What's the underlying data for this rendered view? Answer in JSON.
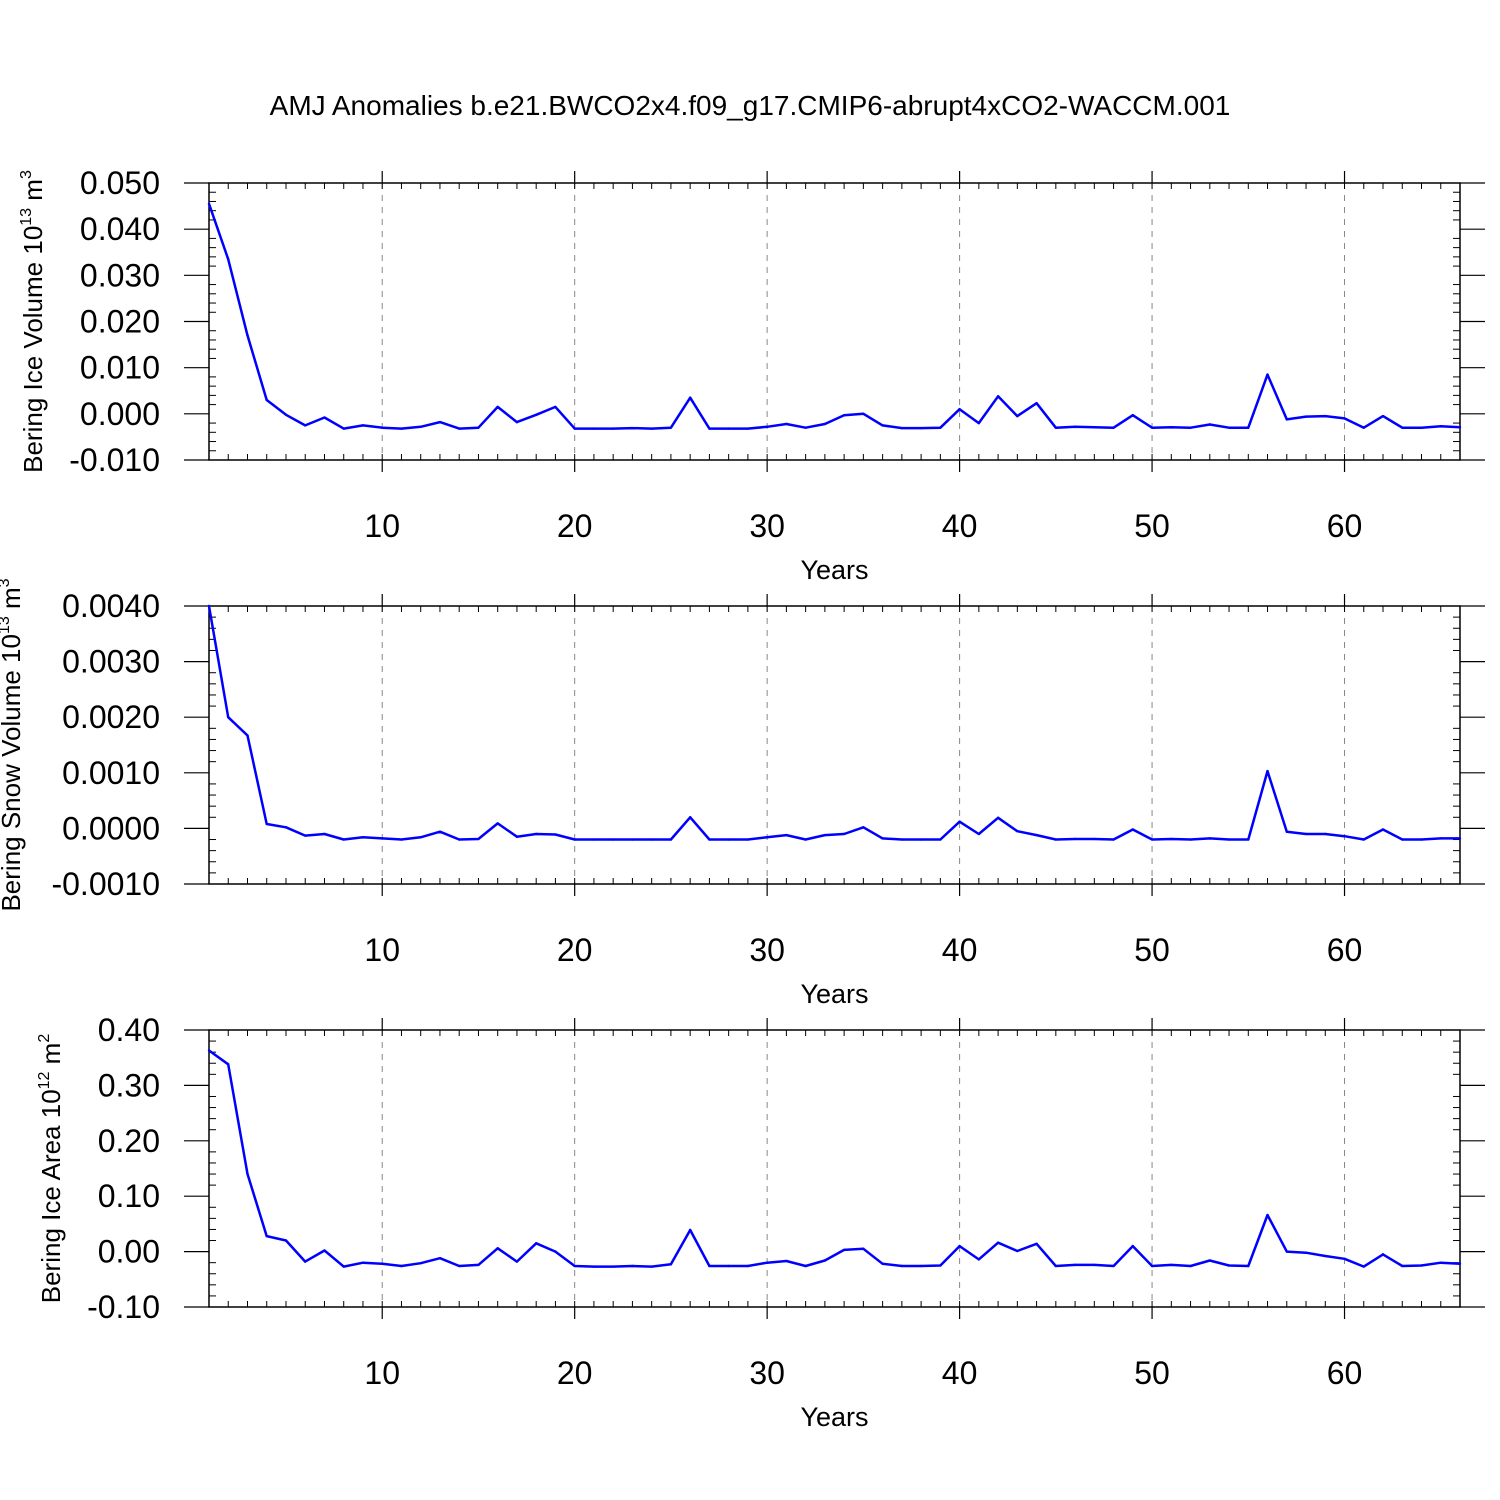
{
  "title": "AMJ Anomalies b.e21.BWCO2x4.f09_g17.CMIP6-abrupt4xCO2-WACCM.001",
  "colors": {
    "line": "#0000ff",
    "axis": "#000000",
    "grid": "#888888"
  },
  "chart_data": [
    {
      "type": "line",
      "ylabel": "Bering Ice Volume 10",
      "ylabel_sup": "13",
      "ylabel_unit": " m",
      "ylabel_unit_sup": "3",
      "xlabel": "Years",
      "xlim": [
        1,
        66
      ],
      "ylim": [
        -0.01,
        0.05
      ],
      "yticks": [
        -0.01,
        0.0,
        0.01,
        0.02,
        0.03,
        0.04,
        0.05
      ],
      "ytick_labels": [
        "-0.010",
        "0.000",
        "0.010",
        "0.020",
        "0.030",
        "0.040",
        "0.050"
      ],
      "xticks": [
        10,
        20,
        30,
        40,
        50,
        60
      ],
      "xtick_labels": [
        "10",
        "20",
        "30",
        "40",
        "50",
        "60"
      ],
      "grid_x": true,
      "series": [
        {
          "name": "Bering Ice Volume",
          "values": [
            0.0455,
            0.0335,
            0.017,
            0.003,
            -0.0002,
            -0.0025,
            -0.0008,
            -0.0032,
            -0.0025,
            -0.003,
            -0.0032,
            -0.0028,
            -0.0018,
            -0.0032,
            -0.003,
            0.0015,
            -0.0018,
            -0.0002,
            0.0015,
            -0.0032,
            -0.0032,
            -0.0032,
            -0.0031,
            -0.0032,
            -0.003,
            0.0035,
            -0.0032,
            -0.0032,
            -0.0032,
            -0.0028,
            -0.0022,
            -0.003,
            -0.0022,
            -0.0003,
            0.0,
            -0.0025,
            -0.0031,
            -0.0031,
            -0.003,
            0.001,
            -0.002,
            0.0038,
            -0.0005,
            0.0023,
            -0.003,
            -0.0028,
            -0.0029,
            -0.003,
            -0.0003,
            -0.003,
            -0.0029,
            -0.003,
            -0.0023,
            -0.003,
            -0.003,
            0.0085,
            -0.0012,
            -0.0006,
            -0.0005,
            -0.001,
            -0.003,
            -0.0005,
            -0.003,
            -0.003,
            -0.0027,
            -0.0029
          ]
        }
      ]
    },
    {
      "type": "line",
      "ylabel": "Bering Snow Volume 10",
      "ylabel_sup": "13",
      "ylabel_unit": " m",
      "ylabel_unit_sup": "3",
      "xlabel": "Years",
      "xlim": [
        1,
        66
      ],
      "ylim": [
        -0.001,
        0.004
      ],
      "yticks": [
        -0.001,
        0.0,
        0.001,
        0.002,
        0.003,
        0.004
      ],
      "ytick_labels": [
        "-0.0010",
        "0.0000",
        "0.0010",
        "0.0020",
        "0.0030",
        "0.0040"
      ],
      "xticks": [
        10,
        20,
        30,
        40,
        50,
        60
      ],
      "xtick_labels": [
        "10",
        "20",
        "30",
        "40",
        "50",
        "60"
      ],
      "grid_x": true,
      "series": [
        {
          "name": "Bering Snow Volume",
          "values": [
            0.004,
            0.002,
            0.00167,
            8e-05,
            2e-05,
            -0.00013,
            -0.0001,
            -0.0002,
            -0.00016,
            -0.00018,
            -0.0002,
            -0.00016,
            -6e-05,
            -0.0002,
            -0.00019,
            9e-05,
            -0.00015,
            -0.0001,
            -0.00011,
            -0.0002,
            -0.0002,
            -0.0002,
            -0.0002,
            -0.0002,
            -0.0002,
            0.0002,
            -0.0002,
            -0.0002,
            -0.0002,
            -0.00016,
            -0.00012,
            -0.0002,
            -0.00012,
            -0.0001,
            2e-05,
            -0.00018,
            -0.0002,
            -0.0002,
            -0.0002,
            0.00012,
            -0.0001,
            0.00019,
            -5e-05,
            -0.00012,
            -0.0002,
            -0.00019,
            -0.00019,
            -0.0002,
            -2e-05,
            -0.0002,
            -0.00019,
            -0.0002,
            -0.00018,
            -0.0002,
            -0.0002,
            0.00103,
            -6e-05,
            -0.0001,
            -0.0001,
            -0.00014,
            -0.0002,
            -2e-05,
            -0.0002,
            -0.0002,
            -0.00018,
            -0.00018
          ]
        }
      ]
    },
    {
      "type": "line",
      "ylabel": "Bering Ice Area 10",
      "ylabel_sup": "12",
      "ylabel_unit": " m",
      "ylabel_unit_sup": "2",
      "xlabel": "Years",
      "xlim": [
        1,
        66
      ],
      "ylim": [
        -0.1,
        0.4
      ],
      "yticks": [
        -0.1,
        0.0,
        0.1,
        0.2,
        0.3,
        0.4
      ],
      "ytick_labels": [
        "-0.10",
        "0.00",
        "0.10",
        "0.20",
        "0.30",
        "0.40"
      ],
      "xticks": [
        10,
        20,
        30,
        40,
        50,
        60
      ],
      "xtick_labels": [
        "10",
        "20",
        "30",
        "40",
        "50",
        "60"
      ],
      "grid_x": true,
      "series": [
        {
          "name": "Bering Ice Area",
          "values": [
            0.363,
            0.338,
            0.14,
            0.028,
            0.02,
            -0.018,
            0.002,
            -0.027,
            -0.02,
            -0.022,
            -0.026,
            -0.021,
            -0.012,
            -0.026,
            -0.024,
            0.006,
            -0.018,
            0.015,
            0.0,
            -0.026,
            -0.027,
            -0.027,
            -0.026,
            -0.027,
            -0.023,
            0.039,
            -0.026,
            -0.026,
            -0.026,
            -0.02,
            -0.017,
            -0.026,
            -0.016,
            0.003,
            0.005,
            -0.022,
            -0.026,
            -0.026,
            -0.025,
            0.01,
            -0.014,
            0.016,
            0.001,
            0.014,
            -0.026,
            -0.024,
            -0.024,
            -0.026,
            0.01,
            -0.026,
            -0.024,
            -0.026,
            -0.016,
            -0.025,
            -0.026,
            0.066,
            0.0,
            -0.002,
            -0.008,
            -0.013,
            -0.027,
            -0.005,
            -0.026,
            -0.025,
            -0.02,
            -0.022
          ]
        }
      ]
    }
  ]
}
